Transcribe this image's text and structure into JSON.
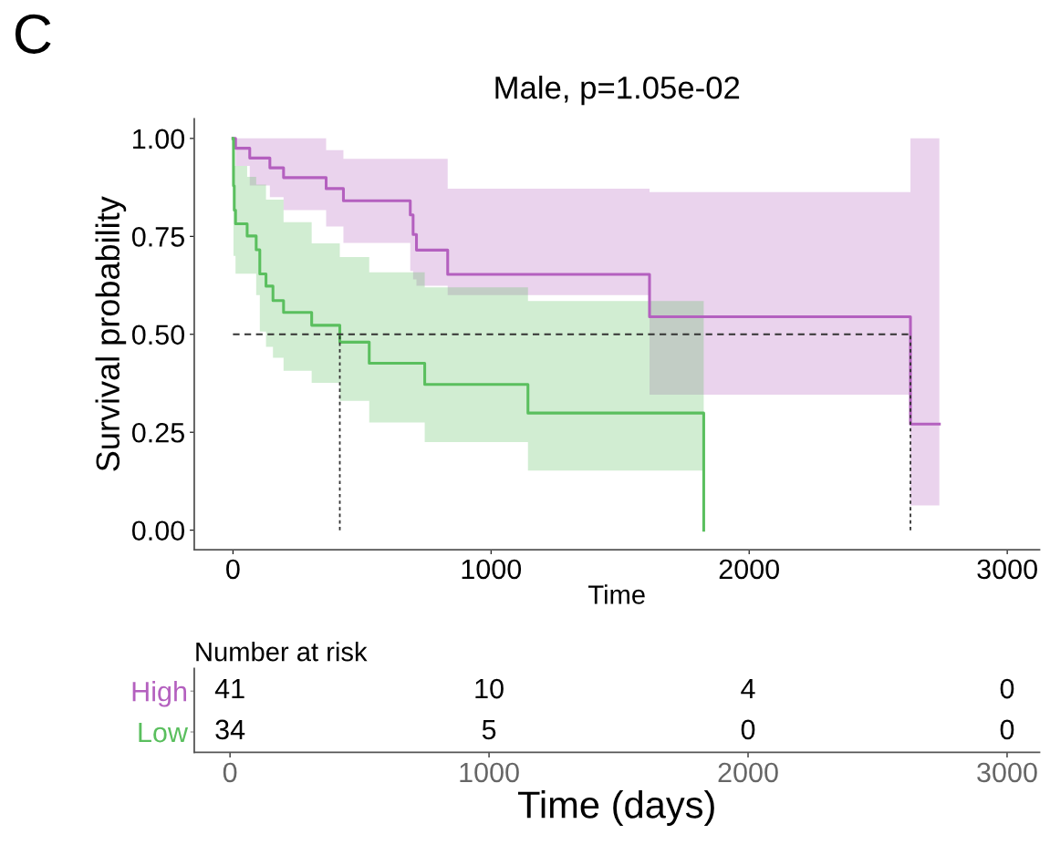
{
  "chart_data": [
    {
      "type": "step",
      "title": "Male, p=1.05e-02",
      "xlabel": "Time",
      "ylabel": "Survival probability",
      "annotations": [
        "C"
      ],
      "xlim": [
        -150,
        3125
      ],
      "xticks": [
        0,
        1000,
        2000,
        3000
      ],
      "ylim": [
        -0.05,
        1.05
      ],
      "yticks": [
        {
          "value": 0,
          "label": "0.00"
        },
        {
          "value": 0.25,
          "label": "0.25"
        },
        {
          "value": 0.5,
          "label": "0.50"
        },
        {
          "value": 0.75,
          "label": "0.75"
        },
        {
          "value": 1,
          "label": "1.00"
        }
      ],
      "grid": false,
      "legend": false,
      "series": [
        {
          "color": "#b460bf",
          "x": [
            0,
            10,
            65,
            143,
            196,
            361,
            428,
            687,
            698,
            711,
            832,
            1614,
            2625,
            2737
          ],
          "values": [
            1,
            0.975,
            0.95,
            0.925,
            0.9,
            0.872,
            0.841,
            0.805,
            0.755,
            0.715,
            0.653,
            0.545,
            0.271,
            0.271
          ],
          "upper": [
            1,
            1,
            1,
            1,
            1,
            0.97,
            0.948,
            0.948,
            0.948,
            0.948,
            0.872,
            0.863,
            1,
            1
          ],
          "lower": [
            1,
            0.93,
            0.88,
            0.85,
            0.817,
            0.775,
            0.733,
            0.662,
            0.64,
            0.624,
            0.6,
            0.346,
            0.063,
            0.063
          ]
        },
        {
          "color": "#5abf5e",
          "x": [
            0,
            2,
            5,
            10,
            55,
            90,
            104,
            128,
            155,
            196,
            305,
            414,
            528,
            743,
            1143,
            1824
          ],
          "values": [
            1,
            0.879,
            0.817,
            0.782,
            0.751,
            0.716,
            0.654,
            0.623,
            0.586,
            0.556,
            0.523,
            0.48,
            0.426,
            0.372,
            0.299,
            0
          ],
          "upper": [
            1,
            0.93,
            0.93,
            0.93,
            0.902,
            0.882,
            0.882,
            0.844,
            0.844,
            0.786,
            0.732,
            0.697,
            0.658,
            0.62,
            0.585,
            0.585
          ],
          "lower": [
            1,
            0.7,
            0.7,
            0.655,
            0.655,
            0.6,
            0.507,
            0.468,
            0.44,
            0.407,
            0.376,
            0.33,
            0.275,
            0.225,
            0.152,
            0.152
          ]
        }
      ],
      "ref_lines": [
        {
          "axis": "y",
          "value": 0.5,
          "line_style": "dashed"
        },
        {
          "axis": "x",
          "value": 414,
          "line_style": "dotted"
        },
        {
          "axis": "x",
          "value": 2625,
          "line_style": "dotted"
        }
      ]
    },
    {
      "type": "heatmap",
      "title": "Number at risk",
      "xlabel": "Time (days)",
      "categories": [
        "0",
        "1000",
        "2000",
        "3000"
      ],
      "y_categories": [
        "High",
        "Low"
      ],
      "cells": [
        [
          41,
          10,
          4,
          0
        ],
        [
          34,
          5,
          0,
          0
        ]
      ],
      "data_labels": true
    }
  ]
}
